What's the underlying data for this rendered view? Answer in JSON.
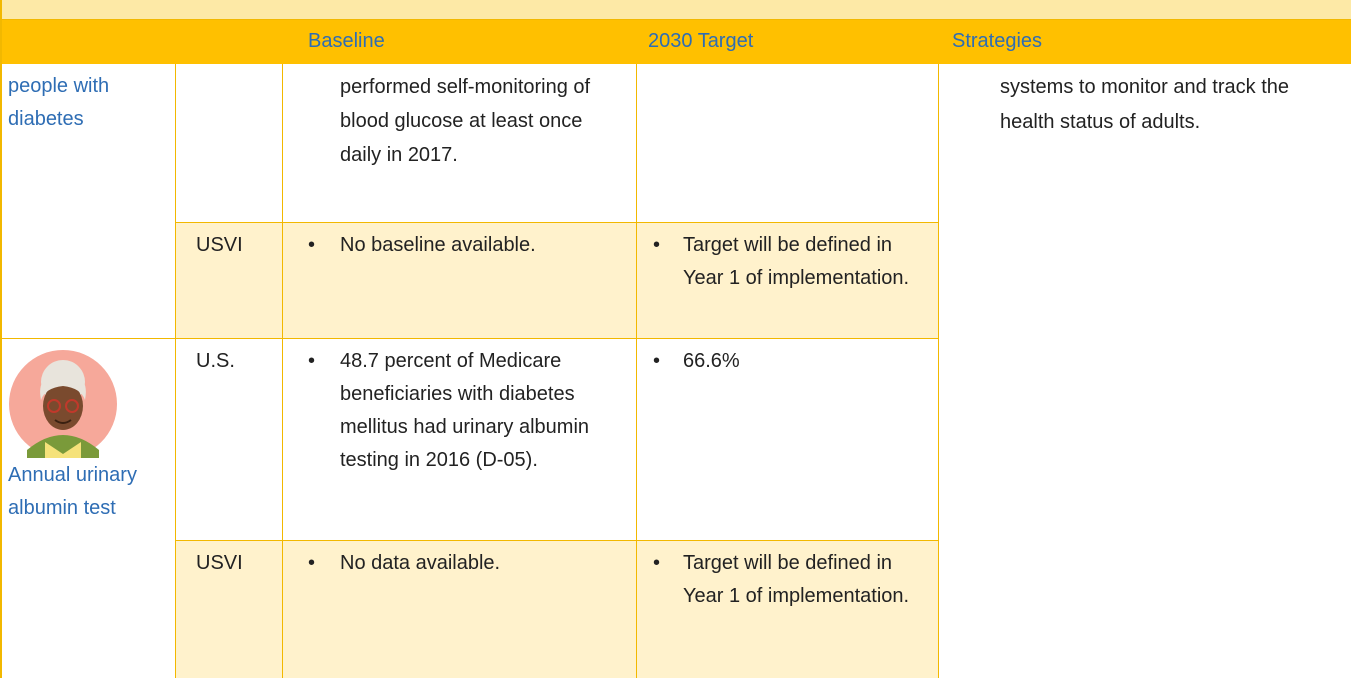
{
  "header": {
    "columns": [
      "Baseline",
      "2030 Target",
      "Strategies"
    ]
  },
  "groups": [
    {
      "label": "people with diabetes",
      "rows": [
        {
          "baseline": "performed self-monitoring of blood glucose at least once daily in 2017."
        },
        {
          "region": "USVI",
          "baseline": "No baseline available.",
          "target": "Target will be defined in Year 1 of implementation."
        }
      ]
    },
    {
      "label": "Annual urinary albumin test",
      "rows": [
        {
          "region": "U.S.",
          "baseline": "48.7 percent of Medicare beneficiaries with diabetes mellitus had urinary albumin testing in 2016 (D-05).",
          "target": "66.6%"
        },
        {
          "region": "USVI",
          "baseline": "No data available.",
          "target": "Target will be defined in Year 1 of implementation."
        }
      ]
    }
  ],
  "strategies": "systems to monitor and track the health status of adults."
}
